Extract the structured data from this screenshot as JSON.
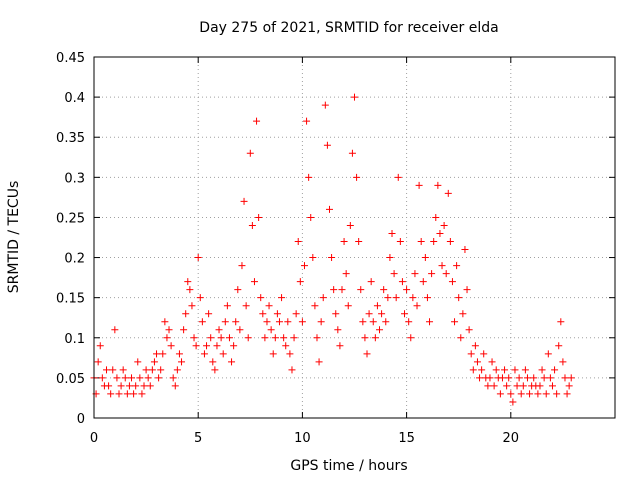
{
  "chart_data": {
    "type": "scatter",
    "title": "Day 275 of 2021, SRMTID for receiver elda",
    "xlabel": "GPS time / hours",
    "ylabel": "SRMTID / TECUs",
    "xlim": [
      0,
      25
    ],
    "ylim": [
      0,
      0.45
    ],
    "xticks": [
      0,
      5,
      10,
      15,
      20
    ],
    "xtick_labels": [
      "0",
      "5",
      "10",
      "15",
      "20"
    ],
    "yticks": [
      0,
      0.05,
      0.1,
      0.15,
      0.2,
      0.25,
      0.3,
      0.35,
      0.4,
      0.45
    ],
    "ytick_labels": [
      "0",
      "0.05",
      "0.1",
      "0.15",
      "0.2",
      "0.25",
      "0.3",
      "0.35",
      "0.4",
      "0.45"
    ],
    "grid": true,
    "marker": "+",
    "series": [
      {
        "name": "SRMTID",
        "color": "#ff0000",
        "points": [
          [
            0.0,
            0.05
          ],
          [
            0.1,
            0.03
          ],
          [
            0.2,
            0.07
          ],
          [
            0.3,
            0.09
          ],
          [
            0.4,
            0.05
          ],
          [
            0.5,
            0.04
          ],
          [
            0.6,
            0.06
          ],
          [
            0.7,
            0.04
          ],
          [
            0.8,
            0.03
          ],
          [
            0.9,
            0.06
          ],
          [
            1.0,
            0.11
          ],
          [
            1.1,
            0.05
          ],
          [
            1.2,
            0.03
          ],
          [
            1.3,
            0.04
          ],
          [
            1.4,
            0.06
          ],
          [
            1.5,
            0.05
          ],
          [
            1.6,
            0.03
          ],
          [
            1.7,
            0.04
          ],
          [
            1.8,
            0.05
          ],
          [
            1.9,
            0.03
          ],
          [
            2.0,
            0.04
          ],
          [
            2.1,
            0.07
          ],
          [
            2.2,
            0.05
          ],
          [
            2.3,
            0.03
          ],
          [
            2.4,
            0.04
          ],
          [
            2.5,
            0.06
          ],
          [
            2.6,
            0.05
          ],
          [
            2.7,
            0.04
          ],
          [
            2.8,
            0.06
          ],
          [
            2.9,
            0.07
          ],
          [
            3.0,
            0.08
          ],
          [
            3.1,
            0.05
          ],
          [
            3.2,
            0.06
          ],
          [
            3.3,
            0.08
          ],
          [
            3.4,
            0.12
          ],
          [
            3.5,
            0.1
          ],
          [
            3.6,
            0.11
          ],
          [
            3.7,
            0.09
          ],
          [
            3.8,
            0.05
          ],
          [
            3.9,
            0.04
          ],
          [
            4.0,
            0.06
          ],
          [
            4.1,
            0.08
          ],
          [
            4.2,
            0.07
          ],
          [
            4.3,
            0.11
          ],
          [
            4.4,
            0.13
          ],
          [
            4.5,
            0.17
          ],
          [
            4.6,
            0.16
          ],
          [
            4.7,
            0.14
          ],
          [
            4.8,
            0.1
          ],
          [
            4.9,
            0.09
          ],
          [
            5.0,
            0.2
          ],
          [
            5.1,
            0.15
          ],
          [
            5.2,
            0.12
          ],
          [
            5.3,
            0.08
          ],
          [
            5.4,
            0.09
          ],
          [
            5.5,
            0.13
          ],
          [
            5.6,
            0.1
          ],
          [
            5.7,
            0.07
          ],
          [
            5.8,
            0.06
          ],
          [
            5.9,
            0.09
          ],
          [
            6.0,
            0.11
          ],
          [
            6.1,
            0.1
          ],
          [
            6.2,
            0.08
          ],
          [
            6.3,
            0.12
          ],
          [
            6.4,
            0.14
          ],
          [
            6.5,
            0.1
          ],
          [
            6.6,
            0.07
          ],
          [
            6.7,
            0.09
          ],
          [
            6.8,
            0.12
          ],
          [
            6.9,
            0.16
          ],
          [
            7.0,
            0.11
          ],
          [
            7.1,
            0.19
          ],
          [
            7.2,
            0.27
          ],
          [
            7.3,
            0.14
          ],
          [
            7.4,
            0.1
          ],
          [
            7.5,
            0.33
          ],
          [
            7.6,
            0.24
          ],
          [
            7.7,
            0.17
          ],
          [
            7.8,
            0.37
          ],
          [
            7.9,
            0.25
          ],
          [
            8.0,
            0.15
          ],
          [
            8.1,
            0.13
          ],
          [
            8.2,
            0.1
          ],
          [
            8.3,
            0.12
          ],
          [
            8.4,
            0.14
          ],
          [
            8.5,
            0.11
          ],
          [
            8.6,
            0.08
          ],
          [
            8.7,
            0.1
          ],
          [
            8.8,
            0.13
          ],
          [
            8.9,
            0.12
          ],
          [
            9.0,
            0.15
          ],
          [
            9.1,
            0.1
          ],
          [
            9.2,
            0.09
          ],
          [
            9.3,
            0.12
          ],
          [
            9.4,
            0.08
          ],
          [
            9.5,
            0.06
          ],
          [
            9.6,
            0.1
          ],
          [
            9.7,
            0.13
          ],
          [
            9.8,
            0.22
          ],
          [
            9.9,
            0.17
          ],
          [
            10.0,
            0.12
          ],
          [
            10.1,
            0.19
          ],
          [
            10.2,
            0.37
          ],
          [
            10.3,
            0.3
          ],
          [
            10.4,
            0.25
          ],
          [
            10.5,
            0.2
          ],
          [
            10.6,
            0.14
          ],
          [
            10.7,
            0.1
          ],
          [
            10.8,
            0.07
          ],
          [
            10.9,
            0.12
          ],
          [
            11.0,
            0.15
          ],
          [
            11.1,
            0.39
          ],
          [
            11.2,
            0.34
          ],
          [
            11.3,
            0.26
          ],
          [
            11.4,
            0.2
          ],
          [
            11.5,
            0.16
          ],
          [
            11.6,
            0.13
          ],
          [
            11.7,
            0.11
          ],
          [
            11.8,
            0.09
          ],
          [
            11.9,
            0.16
          ],
          [
            12.0,
            0.22
          ],
          [
            12.1,
            0.18
          ],
          [
            12.2,
            0.14
          ],
          [
            12.3,
            0.24
          ],
          [
            12.4,
            0.33
          ],
          [
            12.5,
            0.4
          ],
          [
            12.6,
            0.3
          ],
          [
            12.7,
            0.22
          ],
          [
            12.8,
            0.16
          ],
          [
            12.9,
            0.12
          ],
          [
            13.0,
            0.1
          ],
          [
            13.1,
            0.08
          ],
          [
            13.2,
            0.13
          ],
          [
            13.3,
            0.17
          ],
          [
            13.4,
            0.12
          ],
          [
            13.5,
            0.1
          ],
          [
            13.6,
            0.14
          ],
          [
            13.7,
            0.11
          ],
          [
            13.8,
            0.13
          ],
          [
            13.9,
            0.16
          ],
          [
            14.0,
            0.12
          ],
          [
            14.1,
            0.15
          ],
          [
            14.2,
            0.2
          ],
          [
            14.3,
            0.23
          ],
          [
            14.4,
            0.18
          ],
          [
            14.5,
            0.15
          ],
          [
            14.6,
            0.3
          ],
          [
            14.7,
            0.22
          ],
          [
            14.8,
            0.17
          ],
          [
            14.9,
            0.13
          ],
          [
            15.0,
            0.16
          ],
          [
            15.1,
            0.12
          ],
          [
            15.2,
            0.1
          ],
          [
            15.3,
            0.15
          ],
          [
            15.4,
            0.18
          ],
          [
            15.5,
            0.14
          ],
          [
            15.6,
            0.29
          ],
          [
            15.7,
            0.22
          ],
          [
            15.8,
            0.17
          ],
          [
            15.9,
            0.2
          ],
          [
            16.0,
            0.15
          ],
          [
            16.1,
            0.12
          ],
          [
            16.2,
            0.18
          ],
          [
            16.3,
            0.22
          ],
          [
            16.4,
            0.25
          ],
          [
            16.5,
            0.29
          ],
          [
            16.6,
            0.23
          ],
          [
            16.7,
            0.19
          ],
          [
            16.8,
            0.24
          ],
          [
            16.9,
            0.18
          ],
          [
            17.0,
            0.28
          ],
          [
            17.1,
            0.22
          ],
          [
            17.2,
            0.17
          ],
          [
            17.3,
            0.12
          ],
          [
            17.4,
            0.19
          ],
          [
            17.5,
            0.15
          ],
          [
            17.6,
            0.1
          ],
          [
            17.7,
            0.13
          ],
          [
            17.8,
            0.21
          ],
          [
            17.9,
            0.16
          ],
          [
            18.0,
            0.11
          ],
          [
            18.1,
            0.08
          ],
          [
            18.2,
            0.06
          ],
          [
            18.3,
            0.09
          ],
          [
            18.4,
            0.07
          ],
          [
            18.5,
            0.05
          ],
          [
            18.6,
            0.06
          ],
          [
            18.7,
            0.08
          ],
          [
            18.8,
            0.05
          ],
          [
            18.9,
            0.04
          ],
          [
            19.0,
            0.05
          ],
          [
            19.1,
            0.07
          ],
          [
            19.2,
            0.04
          ],
          [
            19.3,
            0.06
          ],
          [
            19.4,
            0.05
          ],
          [
            19.5,
            0.03
          ],
          [
            19.6,
            0.05
          ],
          [
            19.7,
            0.06
          ],
          [
            19.8,
            0.04
          ],
          [
            19.9,
            0.05
          ],
          [
            20.0,
            0.03
          ],
          [
            20.1,
            0.02
          ],
          [
            20.2,
            0.06
          ],
          [
            20.3,
            0.04
          ],
          [
            20.4,
            0.05
          ],
          [
            20.5,
            0.03
          ],
          [
            20.6,
            0.04
          ],
          [
            20.7,
            0.06
          ],
          [
            20.8,
            0.05
          ],
          [
            20.9,
            0.03
          ],
          [
            21.0,
            0.04
          ],
          [
            21.1,
            0.05
          ],
          [
            21.2,
            0.04
          ],
          [
            21.3,
            0.03
          ],
          [
            21.4,
            0.04
          ],
          [
            21.5,
            0.06
          ],
          [
            21.6,
            0.05
          ],
          [
            21.7,
            0.03
          ],
          [
            21.8,
            0.08
          ],
          [
            21.9,
            0.05
          ],
          [
            22.0,
            0.04
          ],
          [
            22.1,
            0.06
          ],
          [
            22.2,
            0.03
          ],
          [
            22.3,
            0.09
          ],
          [
            22.4,
            0.12
          ],
          [
            22.5,
            0.07
          ],
          [
            22.6,
            0.05
          ],
          [
            22.7,
            0.03
          ],
          [
            22.8,
            0.04
          ],
          [
            22.9,
            0.05
          ]
        ]
      }
    ]
  }
}
